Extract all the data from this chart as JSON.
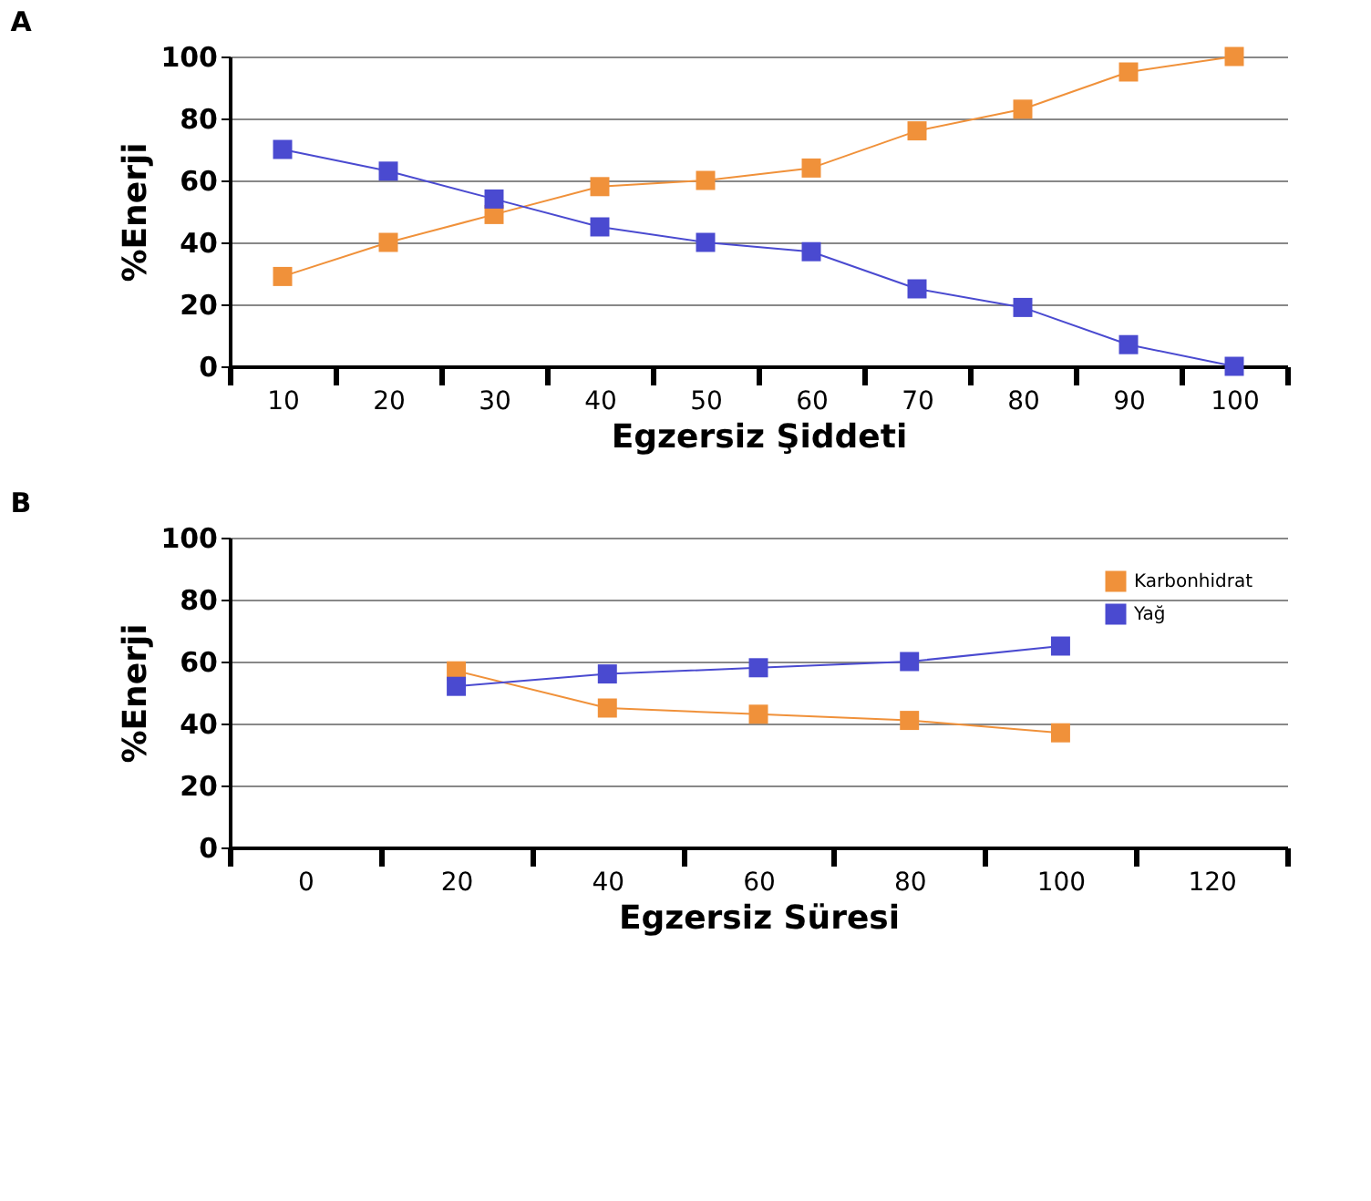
{
  "chart_data": [
    {
      "type": "line",
      "title": "A",
      "xlabel": "Egzersiz Şiddeti",
      "ylabel": "%Enerji",
      "categories": [
        "10",
        "20",
        "30",
        "40",
        "50",
        "60",
        "70",
        "80",
        "90",
        "100"
      ],
      "ylim": [
        0,
        100
      ],
      "yticks": [
        0,
        20,
        40,
        60,
        80,
        100
      ],
      "grid": "y",
      "marker": "square",
      "line_style": "solid",
      "legend": false,
      "series": [
        {
          "color": "#f0913a",
          "values": [
            29,
            40,
            49,
            58,
            60,
            64,
            76,
            83,
            95,
            100
          ]
        },
        {
          "color": "#4a4ad0",
          "values": [
            70,
            63,
            54,
            45,
            40,
            37,
            25,
            19,
            7,
            0
          ]
        }
      ]
    },
    {
      "type": "line",
      "title": "B",
      "xlabel": "Egzersiz Süresi",
      "ylabel": "%Enerji",
      "categories": [
        "0",
        "20",
        "40",
        "60",
        "80",
        "100",
        "120"
      ],
      "ylim": [
        0,
        100
      ],
      "yticks": [
        0,
        20,
        40,
        60,
        80,
        100
      ],
      "grid": "y",
      "marker": "square",
      "line_style": "solid",
      "legend": "top right",
      "series": [
        {
          "name": "Karbonhidrat",
          "color": "#f0913a",
          "values": [
            null,
            57,
            45,
            43,
            41,
            37,
            null
          ]
        },
        {
          "name": "Yağ",
          "color": "#4a4ad0",
          "values": [
            null,
            52,
            56,
            58,
            60,
            65,
            null
          ]
        }
      ]
    }
  ]
}
